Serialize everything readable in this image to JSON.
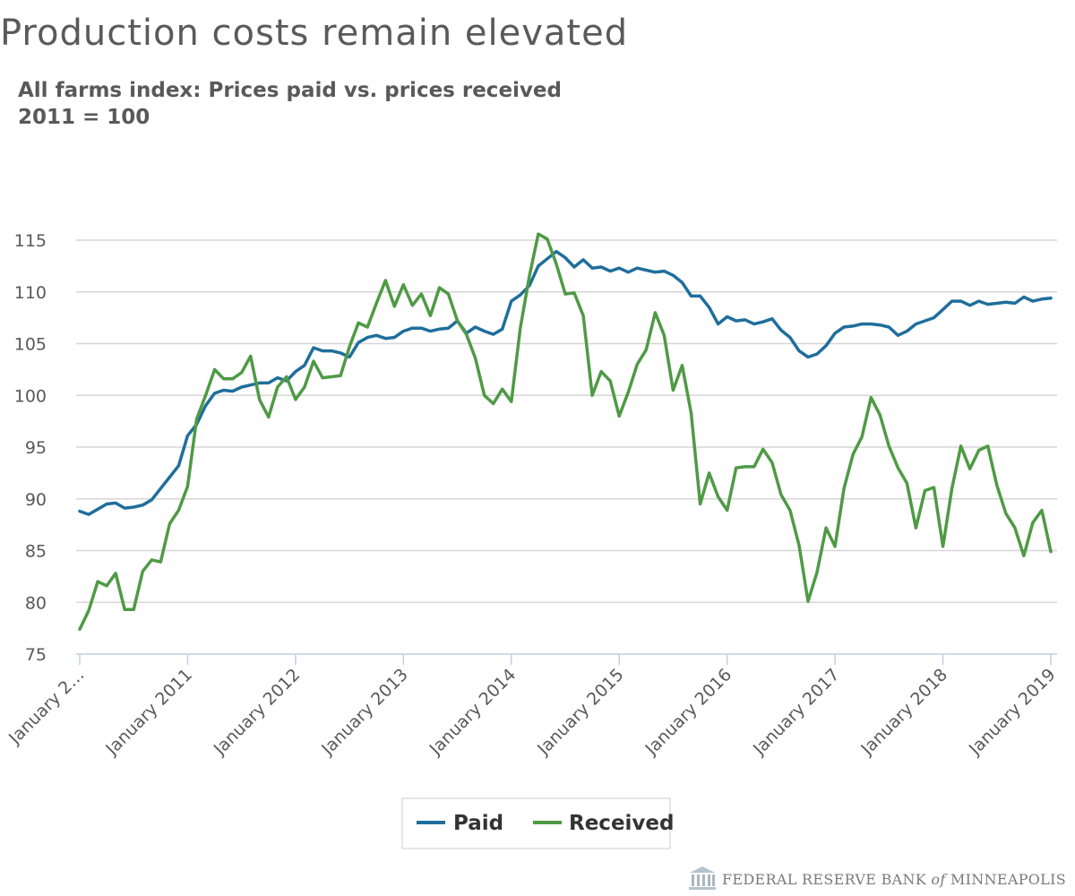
{
  "header": {
    "title": "Production costs remain elevated",
    "subtitle_line1": "All farms index: Prices paid vs. prices received",
    "subtitle_line2": "2011 = 100"
  },
  "footer": {
    "source_part1": "FEDERAL RESERVE BANK ",
    "source_part2": "of",
    "source_part3": " MINNEAPOLIS",
    "logo_icon": "federal-reserve-building-icon"
  },
  "colors": {
    "paid": "#1f6e9c",
    "received": "#4f9a45",
    "grid": "#d6d6d6",
    "axis": "#c3cfe0",
    "text": "#595959"
  },
  "chart_data": {
    "type": "line",
    "title": "All farms index: Prices paid vs. prices received",
    "subtitle": "2011 = 100",
    "xlabel": "",
    "ylabel": "",
    "x_start": "2010-01",
    "x_end": "2019-01",
    "x_frequency": "monthly",
    "ylim": [
      75,
      115
    ],
    "yticks": [
      75,
      80,
      85,
      90,
      95,
      100,
      105,
      110,
      115
    ],
    "xtick_labels": [
      "January 2…",
      "January 2011",
      "January 2012",
      "January 2013",
      "January 2014",
      "January 2015",
      "January 2016",
      "January 2017",
      "January 2018",
      "January 2019"
    ],
    "grid": true,
    "legend": "bottom-center",
    "series": [
      {
        "name": "Paid",
        "color": "#1f6e9c",
        "values": [
          88.8,
          88.5,
          89.0,
          89.5,
          89.6,
          89.1,
          89.2,
          89.4,
          89.9,
          91.0,
          92.1,
          93.2,
          96.1,
          97.2,
          99.0,
          100.2,
          100.5,
          100.4,
          100.8,
          101.0,
          101.2,
          101.2,
          101.7,
          101.4,
          102.3,
          102.9,
          104.6,
          104.3,
          104.3,
          104.1,
          103.7,
          105.1,
          105.6,
          105.8,
          105.5,
          105.6,
          106.2,
          106.5,
          106.5,
          106.2,
          106.4,
          106.5,
          107.2,
          106.0,
          106.6,
          106.2,
          105.9,
          106.4,
          109.1,
          109.7,
          110.6,
          112.5,
          113.2,
          113.9,
          113.3,
          112.4,
          113.1,
          112.3,
          112.4,
          112.0,
          112.3,
          111.9,
          112.3,
          112.1,
          111.9,
          112.0,
          111.6,
          110.9,
          109.6,
          109.6,
          108.5,
          106.9,
          107.6,
          107.2,
          107.3,
          106.9,
          107.1,
          107.4,
          106.3,
          105.6,
          104.3,
          103.7,
          104.0,
          104.8,
          106.0,
          106.6,
          106.7,
          106.9,
          106.9,
          106.8,
          106.6,
          105.8,
          106.2,
          106.9,
          107.2,
          107.5,
          108.3,
          109.1,
          109.1,
          108.7,
          109.1,
          108.8,
          108.9,
          109.0,
          108.9,
          109.5,
          109.1,
          109.3,
          109.4
        ],
        "label_note": "monthly index values, January 2010 through January 2019"
      },
      {
        "name": "Received",
        "color": "#4f9a45",
        "values": [
          77.4,
          79.2,
          82.0,
          81.6,
          82.8,
          79.3,
          79.3,
          83.0,
          84.1,
          83.9,
          87.6,
          88.9,
          91.2,
          97.7,
          100.0,
          102.5,
          101.6,
          101.6,
          102.2,
          103.8,
          99.6,
          97.9,
          100.8,
          101.8,
          99.6,
          100.8,
          103.3,
          101.7,
          101.8,
          101.9,
          104.7,
          107.0,
          106.6,
          108.9,
          111.1,
          108.6,
          110.7,
          108.7,
          109.8,
          107.7,
          110.4,
          109.8,
          107.2,
          105.9,
          103.6,
          100.0,
          99.2,
          100.6,
          99.4,
          106.5,
          111.5,
          115.6,
          115.1,
          112.7,
          109.8,
          109.9,
          107.7,
          100.0,
          102.3,
          101.4,
          98.0,
          100.3,
          103.0,
          104.4,
          108.0,
          105.8,
          100.5,
          102.9,
          98.3,
          89.5,
          92.5,
          90.2,
          88.9,
          93.0,
          93.1,
          93.1,
          94.8,
          93.5,
          90.4,
          88.9,
          85.5,
          80.1,
          82.9,
          87.2,
          85.4,
          91.0,
          94.3,
          96.0,
          99.8,
          98.1,
          95.1,
          93.0,
          91.5,
          87.2,
          90.8,
          91.1,
          85.4,
          91.0,
          95.1,
          92.9,
          94.7,
          95.1,
          91.3,
          88.6,
          87.2,
          84.5,
          87.7,
          88.9,
          84.9
        ],
        "label_note": "monthly index values, January 2010 through January 2019"
      }
    ]
  },
  "legend": {
    "paid_label": "Paid",
    "received_label": "Received"
  }
}
